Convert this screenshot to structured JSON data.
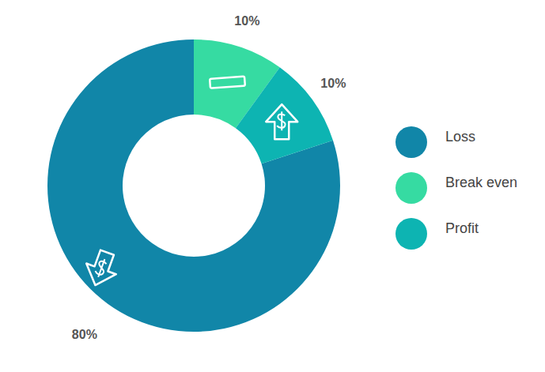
{
  "chart_data": {
    "type": "donut",
    "categories": [
      "Loss",
      "Break even",
      "Profit"
    ],
    "values": [
      80,
      10,
      10
    ],
    "value_labels": [
      "80%",
      "10%",
      "10%"
    ],
    "colors": [
      "#1186a8",
      "#36dba2",
      "#0db4b2"
    ],
    "data_labels": true,
    "legend": "right"
  }
}
